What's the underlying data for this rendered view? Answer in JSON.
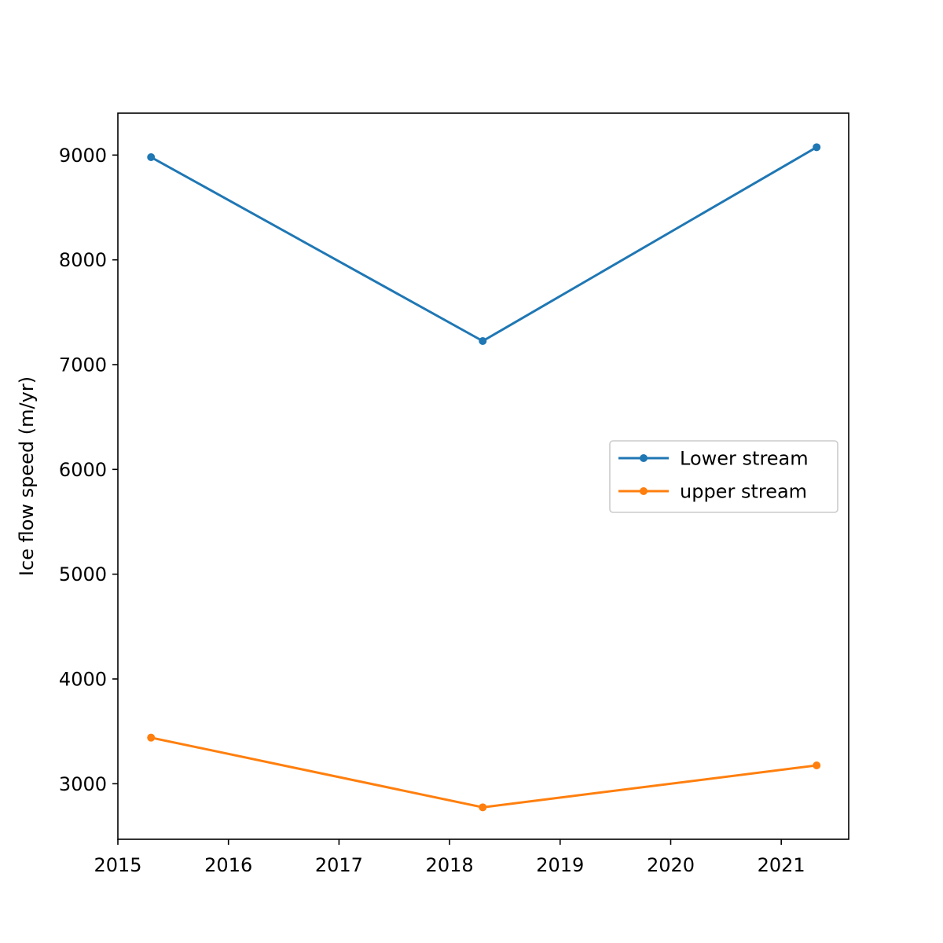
{
  "chart_data": {
    "type": "line",
    "title": "",
    "xlabel": "",
    "ylabel": "Ice flow speed (m/yr)",
    "xlim": [
      2015.0,
      2021.61
    ],
    "ylim": [
      2470,
      9400
    ],
    "xticks": [
      2015,
      2016,
      2017,
      2018,
      2019,
      2020,
      2021
    ],
    "xtick_labels": [
      "2015",
      "2016",
      "2017",
      "2018",
      "2019",
      "2020",
      "2021"
    ],
    "yticks": [
      3000,
      4000,
      5000,
      6000,
      7000,
      8000,
      9000
    ],
    "ytick_labels": [
      "3000",
      "4000",
      "5000",
      "6000",
      "7000",
      "8000",
      "9000"
    ],
    "grid": false,
    "legend_position": "center-right",
    "series": [
      {
        "name": "Lower stream",
        "color": "#1f77b4",
        "marker": "circle",
        "x": [
          2015.3,
          2018.3,
          2021.32
        ],
        "y": [
          8980,
          7225,
          9075
        ]
      },
      {
        "name": "upper stream",
        "color": "#ff7f0e",
        "marker": "circle",
        "x": [
          2015.3,
          2018.3,
          2021.32
        ],
        "y": [
          3440,
          2775,
          3175
        ]
      }
    ]
  }
}
